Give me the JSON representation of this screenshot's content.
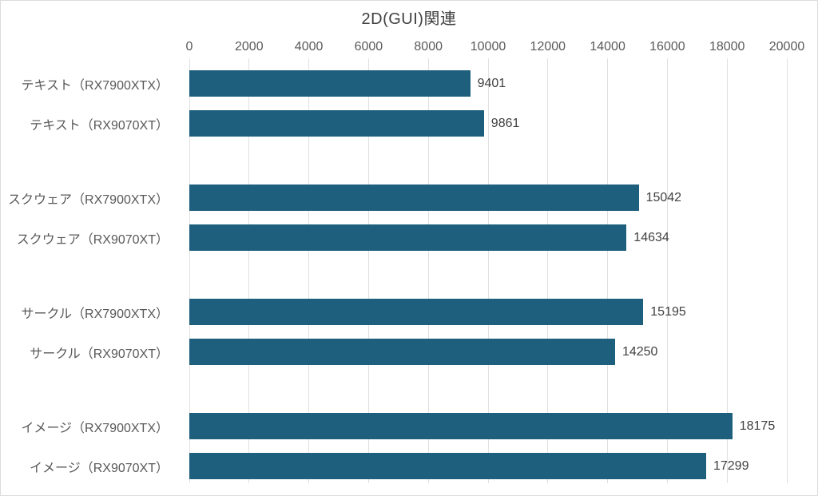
{
  "chart_data": {
    "type": "bar",
    "orientation": "horizontal",
    "title": "2D(GUI)関連",
    "value_axis": {
      "position": "top",
      "min": 0,
      "max": 20000,
      "step": 2000,
      "tick_labels": [
        "0",
        "2000",
        "4000",
        "6000",
        "8000",
        "10000",
        "12000",
        "14000",
        "16000",
        "18000",
        "20000"
      ]
    },
    "grid": true,
    "legend": "none",
    "data_labels": "outside-end",
    "groups": [
      {
        "rows": [
          {
            "label": "テキスト（RX7900XTX）",
            "value": 9401
          },
          {
            "label": "テキスト（RX9070XT）",
            "value": 9861
          }
        ]
      },
      {
        "rows": [
          {
            "label": "スクウェア（RX7900XTX）",
            "value": 15042
          },
          {
            "label": "スクウェア（RX9070XT）",
            "value": 14634
          }
        ]
      },
      {
        "rows": [
          {
            "label": "サークル（RX7900XTX）",
            "value": 15195
          },
          {
            "label": "サークル（RX9070XT）",
            "value": 14250
          }
        ]
      },
      {
        "rows": [
          {
            "label": "イメージ（RX7900XTX）",
            "value": 18175
          },
          {
            "label": "イメージ（RX9070XT）",
            "value": 17299
          }
        ]
      }
    ],
    "colors": {
      "bar": "#1E5F7E",
      "gridline": "#E0E0E0",
      "title_text": "#404040",
      "tick_text": "#595959",
      "category_text": "#595959",
      "value_text": "#404040",
      "background": "#FFFFFF",
      "frame_border": "#DCDCDC"
    }
  }
}
